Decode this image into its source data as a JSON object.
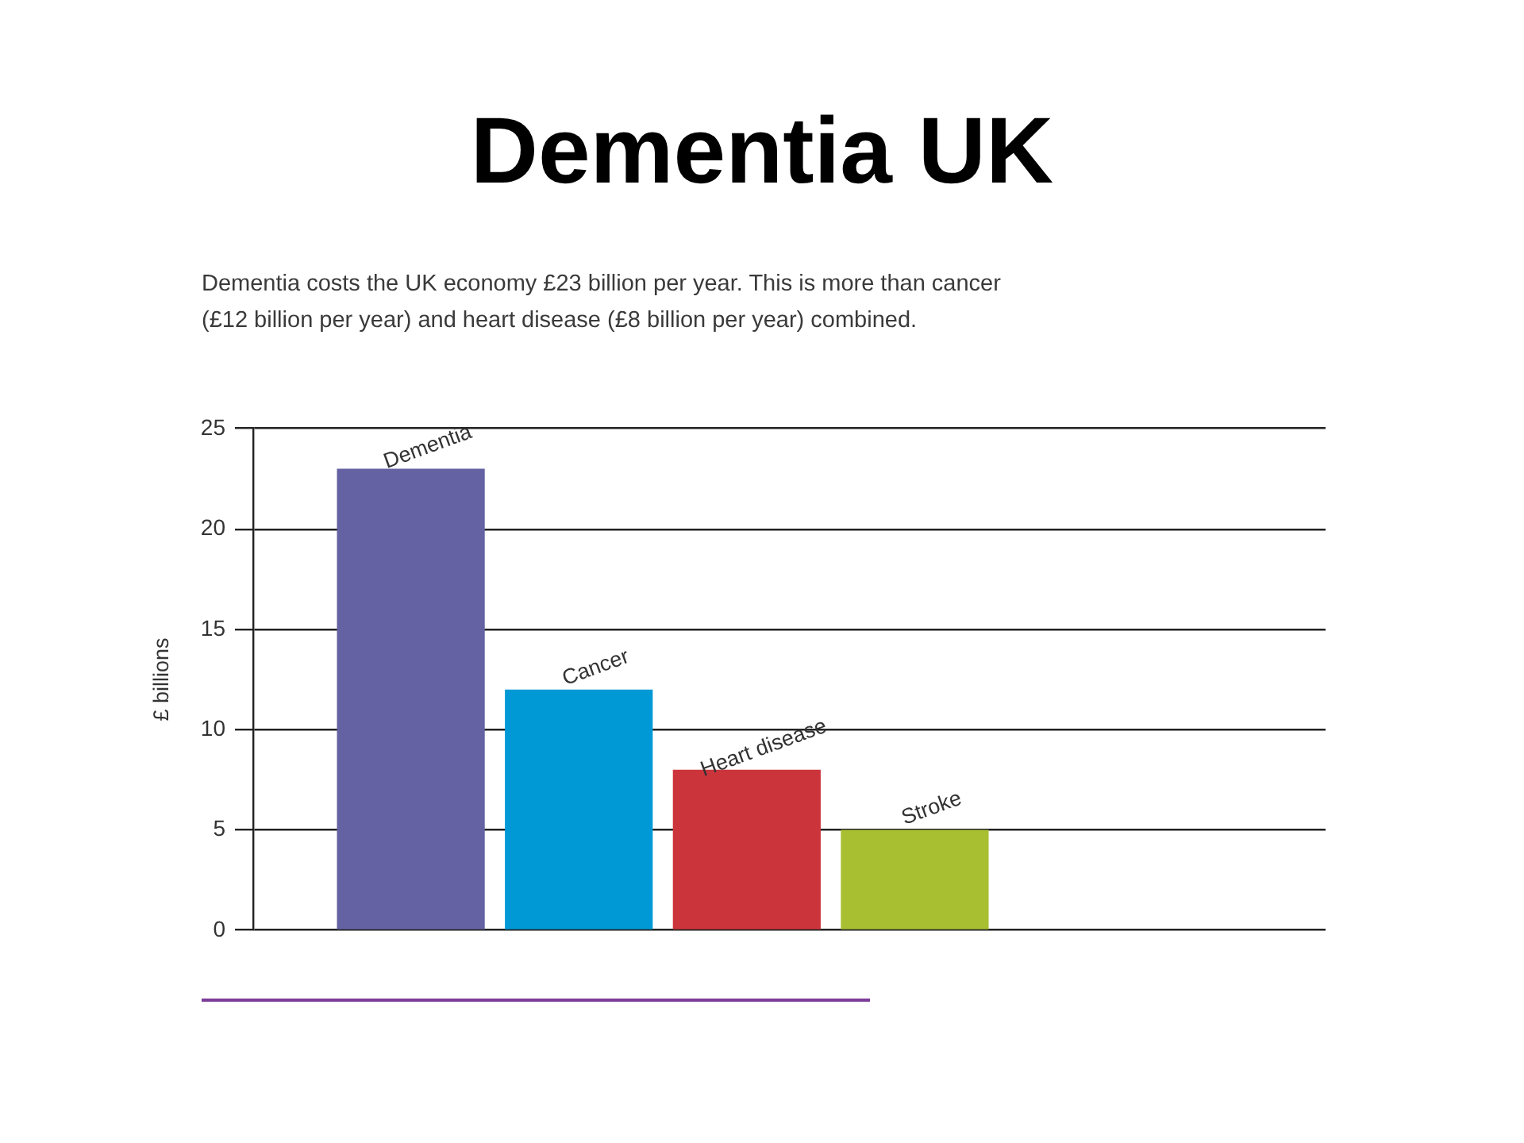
{
  "chart_data": {
    "type": "bar",
    "title": "Dementia UK",
    "subtitle": "Dementia costs the UK economy £23 billion per year. This is more than cancer (£12 billion per year) and heart disease (£8 billion per year) combined.",
    "ylabel": "£ billions",
    "categories": [
      "Dementia",
      "Cancer",
      "Heart disease",
      "Stroke"
    ],
    "values": [
      23,
      12,
      8,
      5
    ],
    "colors": [
      "#6462a3",
      "#0099d6",
      "#cc343c",
      "#a8bf32"
    ],
    "ylim": [
      0,
      25
    ],
    "yticks": [
      0,
      5,
      10,
      15,
      20,
      25
    ],
    "grid": "y"
  }
}
